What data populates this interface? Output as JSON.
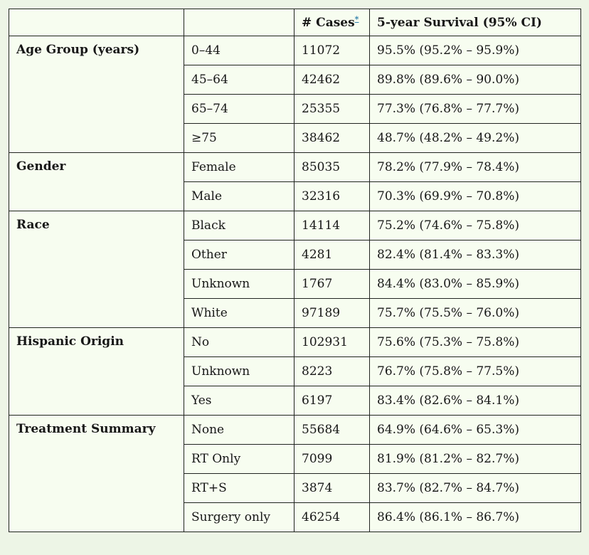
{
  "colors": {
    "page_background": "#edf5e6",
    "cell_background": "#f7fdf0",
    "border": "#212421",
    "text": "#171717",
    "footnote_link": "#2e7ea9"
  },
  "chart_data": {
    "type": "table",
    "header": {
      "category_col": "",
      "level_col": "",
      "cases_label": "# Cases",
      "cases_footnote_marker": "*",
      "survival_label": "5-year Survival (95% CI)"
    },
    "groups": [
      {
        "category": "Age Group (years)",
        "rows": [
          {
            "level": "0–44",
            "cases": "11072",
            "survival": "95.5% (95.2% – 95.9%)"
          },
          {
            "level": "45–64",
            "cases": "42462",
            "survival": "89.8% (89.6% – 90.0%)"
          },
          {
            "level": "65–74",
            "cases": "25355",
            "survival": "77.3% (76.8% – 77.7%)"
          },
          {
            "level": "≥75",
            "cases": "38462",
            "survival": "48.7% (48.2% – 49.2%)"
          }
        ]
      },
      {
        "category": "Gender",
        "rows": [
          {
            "level": "Female",
            "cases": "85035",
            "survival": "78.2% (77.9% – 78.4%)"
          },
          {
            "level": "Male",
            "cases": "32316",
            "survival": "70.3% (69.9% – 70.8%)"
          }
        ]
      },
      {
        "category": "Race",
        "rows": [
          {
            "level": "Black",
            "cases": "14114",
            "survival": "75.2% (74.6% – 75.8%)"
          },
          {
            "level": "Other",
            "cases": "4281",
            "survival": "82.4% (81.4% – 83.3%)"
          },
          {
            "level": "Unknown",
            "cases": "1767",
            "survival": "84.4% (83.0% – 85.9%)"
          },
          {
            "level": "White",
            "cases": "97189",
            "survival": "75.7% (75.5% – 76.0%)"
          }
        ]
      },
      {
        "category": "Hispanic Origin",
        "rows": [
          {
            "level": "No",
            "cases": "102931",
            "survival": "75.6% (75.3% – 75.8%)"
          },
          {
            "level": "Unknown",
            "cases": "8223",
            "survival": "76.7% (75.8% – 77.5%)"
          },
          {
            "level": "Yes",
            "cases": "6197",
            "survival": "83.4% (82.6% – 84.1%)"
          }
        ]
      },
      {
        "category": "Treatment Summary",
        "rows": [
          {
            "level": "None",
            "cases": "55684",
            "survival": "64.9% (64.6% – 65.3%)"
          },
          {
            "level": "RT Only",
            "cases": "7099",
            "survival": "81.9% (81.2% – 82.7%)"
          },
          {
            "level": "RT+S",
            "cases": "3874",
            "survival": "83.7% (82.7% – 84.7%)"
          },
          {
            "level": "Surgery only",
            "cases": "46254",
            "survival": "86.4% (86.1% – 86.7%)"
          }
        ]
      }
    ]
  }
}
